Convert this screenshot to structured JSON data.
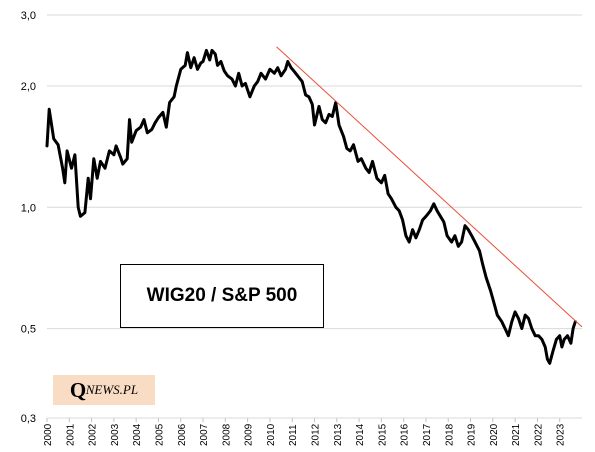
{
  "chart_data": {
    "type": "line",
    "title": "WIG20 / S&P 500",
    "y_scale": "log",
    "ylim": [
      0.3,
      3.0
    ],
    "y_ticks": [
      {
        "value": 3.0,
        "label": "3,0"
      },
      {
        "value": 2.0,
        "label": "2,0"
      },
      {
        "value": 1.0,
        "label": "1,0"
      },
      {
        "value": 0.5,
        "label": "0,5"
      },
      {
        "value": 0.3,
        "label": "0,3"
      }
    ],
    "xlim": [
      2000.0,
      2024.0
    ],
    "x_ticks": [
      "2000",
      "2001",
      "2002",
      "2003",
      "2004",
      "2005",
      "2006",
      "2007",
      "2008",
      "2009",
      "2010",
      "2011",
      "2012",
      "2013",
      "2014",
      "2015",
      "2016",
      "2017",
      "2018",
      "2019",
      "2020",
      "2021",
      "2022",
      "2023"
    ],
    "grid": {
      "horizontal": true,
      "vertical": false
    },
    "colors": {
      "series": "#000000",
      "trendline": "#e8503a",
      "grid": "#d9d9d9",
      "logo_bg": "#f9dcc4"
    },
    "series": [
      {
        "points": [
          [
            2000.0,
            1.42
          ],
          [
            2000.1,
            1.75
          ],
          [
            2000.3,
            1.48
          ],
          [
            2000.5,
            1.43
          ],
          [
            2000.7,
            1.25
          ],
          [
            2000.8,
            1.15
          ],
          [
            2000.9,
            1.38
          ],
          [
            2001.1,
            1.25
          ],
          [
            2001.25,
            1.35
          ],
          [
            2001.4,
            1.0
          ],
          [
            2001.5,
            0.95
          ],
          [
            2001.7,
            0.97
          ],
          [
            2001.85,
            1.18
          ],
          [
            2001.95,
            1.05
          ],
          [
            2002.1,
            1.32
          ],
          [
            2002.25,
            1.18
          ],
          [
            2002.4,
            1.3
          ],
          [
            2002.6,
            1.25
          ],
          [
            2002.8,
            1.38
          ],
          [
            2003.0,
            1.35
          ],
          [
            2003.1,
            1.42
          ],
          [
            2003.3,
            1.33
          ],
          [
            2003.4,
            1.28
          ],
          [
            2003.6,
            1.32
          ],
          [
            2003.7,
            1.65
          ],
          [
            2003.8,
            1.45
          ],
          [
            2004.0,
            1.55
          ],
          [
            2004.2,
            1.58
          ],
          [
            2004.35,
            1.65
          ],
          [
            2004.5,
            1.53
          ],
          [
            2004.7,
            1.56
          ],
          [
            2004.85,
            1.62
          ],
          [
            2005.0,
            1.67
          ],
          [
            2005.2,
            1.72
          ],
          [
            2005.35,
            1.58
          ],
          [
            2005.5,
            1.82
          ],
          [
            2005.7,
            1.88
          ],
          [
            2005.8,
            2.0
          ],
          [
            2006.0,
            2.2
          ],
          [
            2006.2,
            2.25
          ],
          [
            2006.3,
            2.42
          ],
          [
            2006.45,
            2.22
          ],
          [
            2006.6,
            2.35
          ],
          [
            2006.75,
            2.2
          ],
          [
            2006.9,
            2.28
          ],
          [
            2007.0,
            2.3
          ],
          [
            2007.15,
            2.45
          ],
          [
            2007.3,
            2.32
          ],
          [
            2007.4,
            2.45
          ],
          [
            2007.55,
            2.4
          ],
          [
            2007.65,
            2.25
          ],
          [
            2007.8,
            2.3
          ],
          [
            2007.95,
            2.18
          ],
          [
            2008.1,
            2.12
          ],
          [
            2008.3,
            2.08
          ],
          [
            2008.45,
            2.0
          ],
          [
            2008.6,
            2.15
          ],
          [
            2008.75,
            2.0
          ],
          [
            2008.9,
            2.03
          ],
          [
            2009.1,
            1.88
          ],
          [
            2009.3,
            2.0
          ],
          [
            2009.45,
            2.05
          ],
          [
            2009.6,
            2.15
          ],
          [
            2009.8,
            2.08
          ],
          [
            2010.0,
            2.2
          ],
          [
            2010.2,
            2.15
          ],
          [
            2010.35,
            2.22
          ],
          [
            2010.5,
            2.12
          ],
          [
            2010.7,
            2.2
          ],
          [
            2010.8,
            2.3
          ],
          [
            2010.95,
            2.22
          ],
          [
            2011.1,
            2.17
          ],
          [
            2011.3,
            2.1
          ],
          [
            2011.45,
            2.05
          ],
          [
            2011.6,
            1.9
          ],
          [
            2011.75,
            1.88
          ],
          [
            2011.9,
            1.8
          ],
          [
            2012.0,
            1.6
          ],
          [
            2012.2,
            1.78
          ],
          [
            2012.35,
            1.65
          ],
          [
            2012.5,
            1.62
          ],
          [
            2012.65,
            1.7
          ],
          [
            2012.8,
            1.68
          ],
          [
            2012.95,
            1.82
          ],
          [
            2013.1,
            1.6
          ],
          [
            2013.3,
            1.5
          ],
          [
            2013.45,
            1.4
          ],
          [
            2013.6,
            1.38
          ],
          [
            2013.75,
            1.43
          ],
          [
            2013.95,
            1.3
          ],
          [
            2014.1,
            1.32
          ],
          [
            2014.3,
            1.25
          ],
          [
            2014.45,
            1.22
          ],
          [
            2014.6,
            1.3
          ],
          [
            2014.8,
            1.18
          ],
          [
            2015.0,
            1.15
          ],
          [
            2015.15,
            1.2
          ],
          [
            2015.3,
            1.08
          ],
          [
            2015.45,
            1.05
          ],
          [
            2015.65,
            1.0
          ],
          [
            2015.8,
            0.98
          ],
          [
            2015.95,
            0.93
          ],
          [
            2016.1,
            0.85
          ],
          [
            2016.25,
            0.82
          ],
          [
            2016.4,
            0.88
          ],
          [
            2016.55,
            0.84
          ],
          [
            2016.7,
            0.88
          ],
          [
            2016.85,
            0.93
          ],
          [
            2017.0,
            0.95
          ],
          [
            2017.2,
            0.98
          ],
          [
            2017.35,
            1.02
          ],
          [
            2017.5,
            0.98
          ],
          [
            2017.65,
            0.95
          ],
          [
            2017.8,
            0.92
          ],
          [
            2017.95,
            0.85
          ],
          [
            2018.15,
            0.82
          ],
          [
            2018.3,
            0.85
          ],
          [
            2018.45,
            0.8
          ],
          [
            2018.6,
            0.82
          ],
          [
            2018.75,
            0.9
          ],
          [
            2018.9,
            0.88
          ],
          [
            2019.05,
            0.85
          ],
          [
            2019.2,
            0.82
          ],
          [
            2019.4,
            0.78
          ],
          [
            2019.55,
            0.72
          ],
          [
            2019.7,
            0.67
          ],
          [
            2019.9,
            0.62
          ],
          [
            2020.05,
            0.58
          ],
          [
            2020.2,
            0.54
          ],
          [
            2020.4,
            0.52
          ],
          [
            2020.55,
            0.5
          ],
          [
            2020.7,
            0.48
          ],
          [
            2020.85,
            0.52
          ],
          [
            2021.0,
            0.55
          ],
          [
            2021.15,
            0.53
          ],
          [
            2021.3,
            0.5
          ],
          [
            2021.45,
            0.54
          ],
          [
            2021.6,
            0.53
          ],
          [
            2021.75,
            0.5
          ],
          [
            2021.9,
            0.48
          ],
          [
            2022.05,
            0.48
          ],
          [
            2022.2,
            0.47
          ],
          [
            2022.35,
            0.45
          ],
          [
            2022.45,
            0.42
          ],
          [
            2022.55,
            0.41
          ],
          [
            2022.7,
            0.44
          ],
          [
            2022.85,
            0.47
          ],
          [
            2023.0,
            0.48
          ],
          [
            2023.1,
            0.45
          ],
          [
            2023.2,
            0.47
          ],
          [
            2023.35,
            0.48
          ],
          [
            2023.5,
            0.46
          ],
          [
            2023.6,
            0.5
          ],
          [
            2023.7,
            0.52
          ]
        ]
      }
    ],
    "trendline": {
      "from": [
        2010.3,
        2.5
      ],
      "to": [
        2024.0,
        0.505
      ]
    }
  },
  "overlay": {
    "title_box": "WIG20 / S&P 500",
    "logo": {
      "big": "Q",
      "small": "NEWS.PL"
    }
  }
}
